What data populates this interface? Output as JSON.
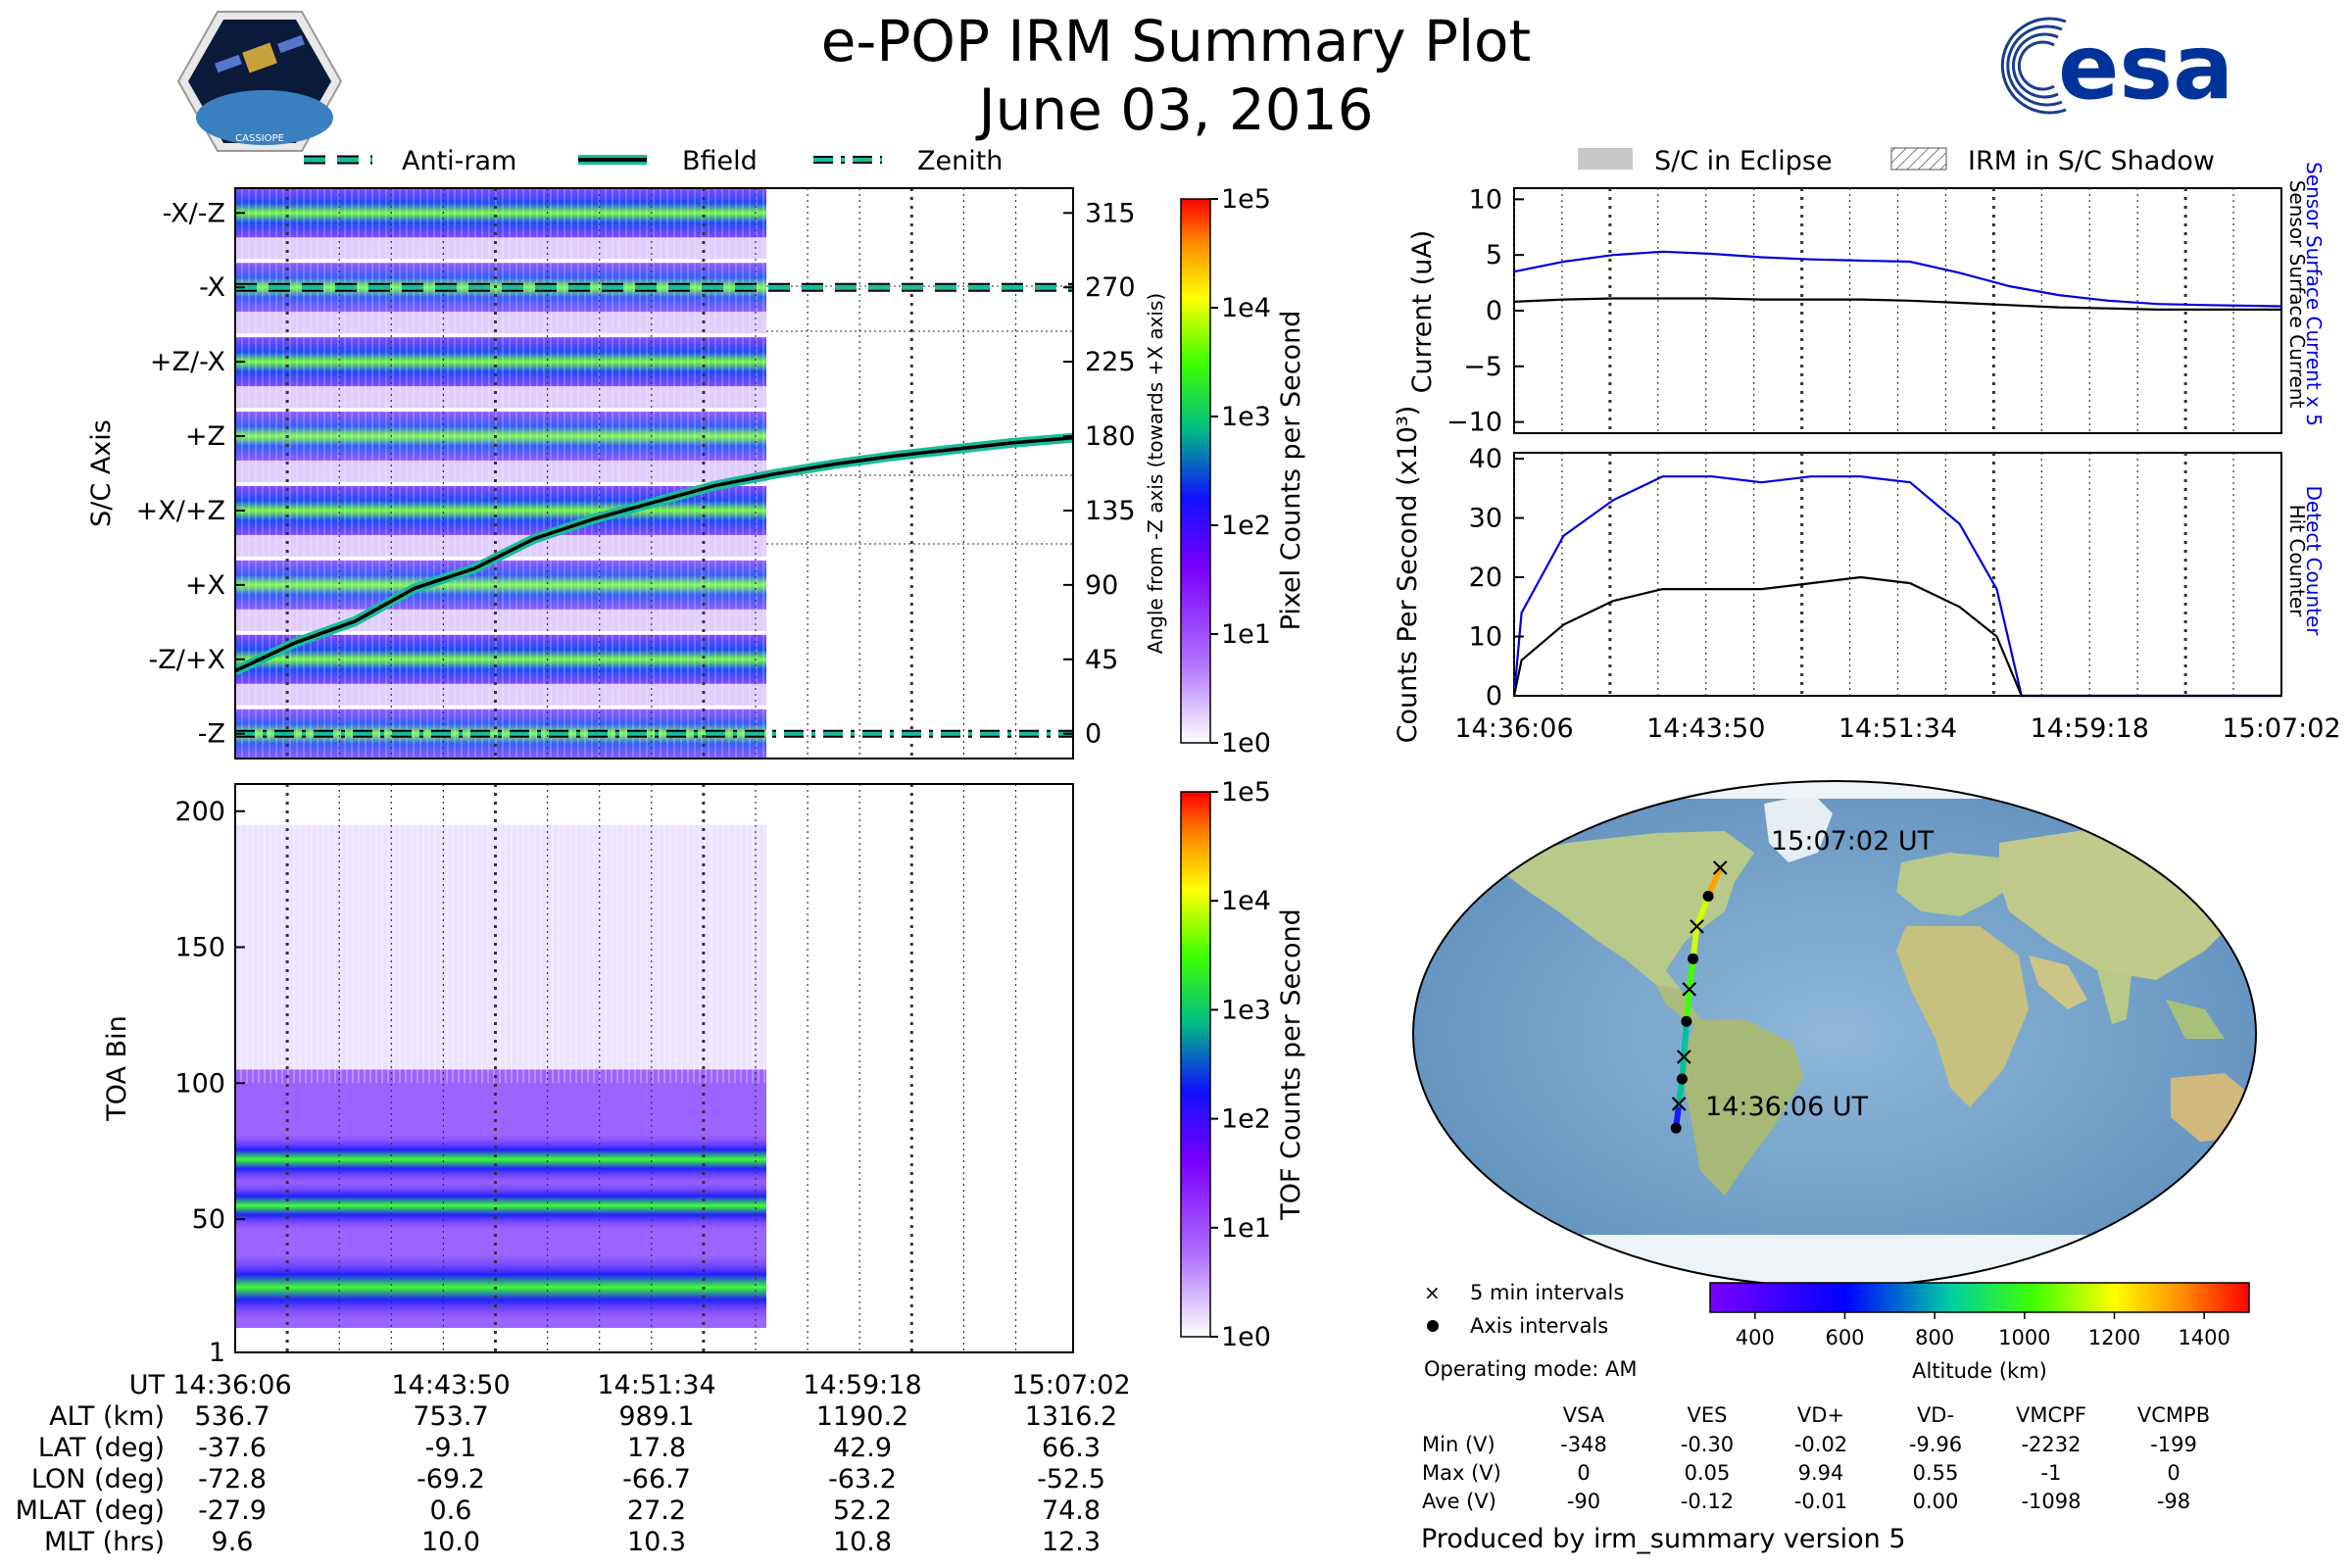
{
  "title": {
    "line1": "e-POP IRM Summary Plot",
    "line2": "June 03, 2016"
  },
  "logos": {
    "cassiope_text": "CASSIOPE",
    "esa_text": "esa"
  },
  "top_legend": {
    "anti_ram": "Anti-ram",
    "bfield": "Bfield",
    "zenith": "Zenith"
  },
  "right_legend": {
    "eclipse": "S/C in Eclipse",
    "shadow": "IRM in S/C Shadow"
  },
  "colors": {
    "anti_ram": "#1abc9c",
    "bfield": "#000000",
    "sensor_blue": "#0000dd"
  },
  "chart_data": [
    {
      "type": "heatmap",
      "name": "pixel-panel",
      "ylabel_left": "S/C Axis",
      "ylabel_right": "Angle from -Z axis (towards +X axis)",
      "axis_labels": [
        "-X/-Z",
        "-X",
        "+Z/-X",
        "+Z",
        "+X/+Z",
        "+X",
        "-Z/+X",
        "-Z"
      ],
      "angle_ticks": [
        315,
        270,
        225,
        180,
        135,
        90,
        45,
        0
      ],
      "ylim": [
        -15,
        330
      ],
      "colorbar": {
        "label": "Pixel Counts per Second",
        "ticks": [
          "1e5",
          "1e4",
          "1e3",
          "1e2",
          "1e1",
          "1e0"
        ]
      },
      "bfield_angle": [
        38,
        55,
        68,
        88,
        100,
        118,
        130,
        140,
        150,
        157,
        163,
        168,
        172,
        176,
        179
      ],
      "antiram_angle": 270,
      "zenith_angle": 0,
      "x_ticks": [
        "14:36:06",
        "14:43:50",
        "14:51:34",
        "14:59:18",
        "15:07:02"
      ]
    },
    {
      "type": "heatmap",
      "name": "toa-panel",
      "ylabel": "TOA Bin",
      "yticks": [
        1,
        50,
        100,
        150,
        200
      ],
      "ylim": [
        1,
        210
      ],
      "bands": [
        25,
        55,
        72
      ],
      "colorbar": {
        "label": "TOF Counts per Second",
        "ticks": [
          "1e5",
          "1e4",
          "1e3",
          "1e2",
          "1e1",
          "1e0"
        ]
      },
      "x_ticks": [
        "14:36:06",
        "14:43:50",
        "14:51:34",
        "14:59:18",
        "15:07:02"
      ]
    },
    {
      "type": "line",
      "name": "current-panel",
      "ylabel": "Current (uA)",
      "ylim": [
        -11,
        11
      ],
      "yticks": [
        10,
        5,
        0,
        -5,
        -10
      ],
      "x": [
        0,
        2,
        4,
        6,
        8,
        10,
        12,
        14,
        16,
        18,
        20,
        22,
        24,
        26,
        28,
        31
      ],
      "series": [
        {
          "name": "Sensor Surface Current x 5",
          "values": [
            3.5,
            4.4,
            5.0,
            5.3,
            5.1,
            4.8,
            4.6,
            4.5,
            4.4,
            3.4,
            2.2,
            1.4,
            0.9,
            0.6,
            0.5,
            0.4
          ]
        },
        {
          "name": "Sensor Surface Current",
          "values": [
            0.8,
            1.0,
            1.1,
            1.1,
            1.1,
            1.0,
            1.0,
            1.0,
            0.9,
            0.7,
            0.5,
            0.3,
            0.2,
            0.1,
            0.1,
            0.1
          ]
        }
      ],
      "x_ticks": [
        "14:36:06",
        "14:43:50",
        "14:51:34",
        "14:59:18",
        "15:07:02"
      ]
    },
    {
      "type": "line",
      "name": "counts-panel",
      "ylabel": "Counts Per Second (x10³)",
      "ylim": [
        0,
        41
      ],
      "yticks": [
        0,
        10,
        20,
        30,
        40
      ],
      "x": [
        0,
        0.3,
        2,
        4,
        6,
        8,
        10,
        12,
        14,
        16,
        18,
        19.5,
        20.5,
        21.5,
        31
      ],
      "series": [
        {
          "name": "Detect Counter",
          "values": [
            0,
            14,
            27,
            33,
            37,
            37,
            36,
            37,
            37,
            36,
            29,
            18,
            0,
            0,
            0
          ]
        },
        {
          "name": "Hit Counter",
          "values": [
            0,
            6,
            12,
            16,
            18,
            18,
            18,
            19,
            20,
            19,
            15,
            10,
            0,
            0,
            0
          ]
        }
      ],
      "x_ticks": [
        "14:36:06",
        "14:43:50",
        "14:51:34",
        "14:59:18",
        "15:07:02"
      ]
    },
    {
      "type": "scatter",
      "name": "orbit-map",
      "start_label": "14:36:06 UT",
      "end_label": "15:07:02 UT",
      "lon": [
        -72.8,
        -71.5,
        -70.0,
        -69.2,
        -68.0,
        -66.7,
        -65.0,
        -63.2,
        -58.0,
        -52.5
      ],
      "lat": [
        -37.6,
        -28.0,
        -18.0,
        -9.1,
        5.0,
        17.8,
        30.0,
        42.9,
        55.0,
        66.3
      ],
      "altitude_km": [
        536.7,
        600,
        680,
        753.7,
        870,
        989.1,
        1090,
        1190.2,
        1250,
        1316.2
      ],
      "colorbar": {
        "label": "Altitude (km)",
        "ticks": [
          400,
          600,
          800,
          1000,
          1200,
          1400
        ],
        "range": [
          300,
          1500
        ]
      }
    }
  ],
  "bottom_table": {
    "headers": [
      "UT",
      "ALT (km)",
      "LAT (deg)",
      "LON (deg)",
      "MLAT (deg)",
      "MLT (hrs)"
    ],
    "columns": [
      [
        "14:36:06",
        "536.7",
        "-37.6",
        "-72.8",
        "-27.9",
        "9.6"
      ],
      [
        "14:43:50",
        "753.7",
        "-9.1",
        "-69.2",
        "0.6",
        "10.0"
      ],
      [
        "14:51:34",
        "989.1",
        "17.8",
        "-66.7",
        "27.2",
        "10.3"
      ],
      [
        "14:59:18",
        "1190.2",
        "42.9",
        "-63.2",
        "52.2",
        "10.8"
      ],
      [
        "15:07:02",
        "1316.2",
        "66.3",
        "-52.5",
        "74.8",
        "12.3"
      ]
    ]
  },
  "map_legend": {
    "five_min": "5 min intervals",
    "axis": "Axis intervals",
    "mode": "Operating mode: AM"
  },
  "voltage_table": {
    "columns": [
      "VSA",
      "VES",
      "VD+",
      "VD-",
      "VMCPF",
      "VCMPB"
    ],
    "rows": [
      {
        "label": "Min (V)",
        "values": [
          "-348",
          "-0.30",
          "-0.02",
          "-9.96",
          "-2232",
          "-199"
        ]
      },
      {
        "label": "Max (V)",
        "values": [
          "0",
          "0.05",
          "9.94",
          "0.55",
          "-1",
          "0"
        ]
      },
      {
        "label": "Ave (V)",
        "values": [
          "-90",
          "-0.12",
          "-0.01",
          "0.00",
          "-1098",
          "-98"
        ]
      }
    ]
  },
  "footer": "Produced by irm_summary version 5"
}
